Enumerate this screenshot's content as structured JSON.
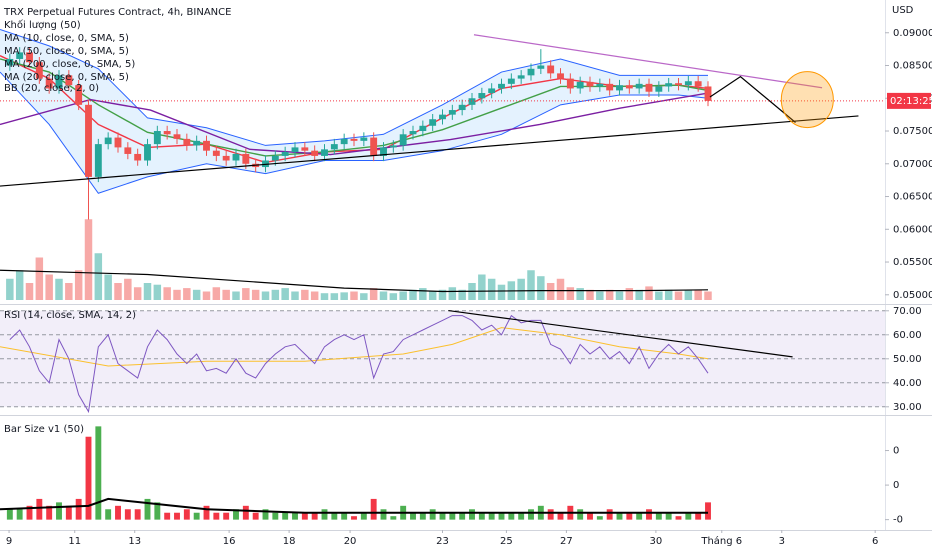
{
  "chart_data": [
    {
      "type": "candlestick",
      "title": "TRX Perpetual Futures Contract, 4h, BINANCE",
      "legend": [
        "Khối lượng (50)",
        "MA (10, close, 0, SMA, 5)",
        "MA (50, close, 0, SMA, 5)",
        "MA (200, close, 0, SMA, 5)",
        "MA (20, close, 0, SMA, 5)",
        "BB (20, close, 2, 0)"
      ],
      "y_label": "USD",
      "countdown": "02:13:25",
      "last_price": 0.0796,
      "up_color": "#26a69a",
      "down_color": "#ef5350",
      "xlim": [
        -1,
        89
      ],
      "xticks": [
        {
          "value": -0.08,
          "label": "9"
        },
        {
          "value": 6.6,
          "label": "11"
        },
        {
          "value": 12.7,
          "label": "13"
        },
        {
          "value": 22.3,
          "label": "16"
        },
        {
          "value": 28.4,
          "label": "18"
        },
        {
          "value": 34.6,
          "label": "20"
        },
        {
          "value": 44,
          "label": "23"
        },
        {
          "value": 50.5,
          "label": "25"
        },
        {
          "value": 56.6,
          "label": "27"
        },
        {
          "value": 65.7,
          "label": "30"
        },
        {
          "value": 72.4,
          "label": "Tháng 6"
        },
        {
          "value": 78.5,
          "label": "3"
        },
        {
          "value": 88,
          "label": "6"
        }
      ],
      "ylim": [
        0.0489,
        0.095
      ],
      "yticks": [
        {
          "value": 0.05,
          "label": "0.05000"
        },
        {
          "value": 0.055,
          "label": "0.05500"
        },
        {
          "value": 0.06,
          "label": "0.06000"
        },
        {
          "value": 0.065,
          "label": "0.06500"
        },
        {
          "value": 0.07,
          "label": "0.07000"
        },
        {
          "value": 0.075,
          "label": "0.07500"
        },
        {
          "value": 0.08,
          "label": "0.08000"
        },
        {
          "value": 0.085,
          "label": "0.08500"
        },
        {
          "value": 0.09,
          "label": "0.09000"
        }
      ],
      "open": [
        0.085,
        0.086,
        0.087,
        0.0855,
        0.083,
        0.0815,
        0.0835,
        0.082,
        0.079,
        0.068,
        0.073,
        0.074,
        0.0725,
        0.0715,
        0.0705,
        0.073,
        0.075,
        0.0745,
        0.0738,
        0.0728,
        0.0735,
        0.072,
        0.0712,
        0.0705,
        0.0715,
        0.07,
        0.0695,
        0.0705,
        0.0712,
        0.0718,
        0.0725,
        0.072,
        0.0712,
        0.0722,
        0.073,
        0.0738,
        0.0735,
        0.074,
        0.0712,
        0.0725,
        0.0728,
        0.0745,
        0.075,
        0.0758,
        0.0768,
        0.0775,
        0.0782,
        0.079,
        0.08,
        0.0808,
        0.0815,
        0.0822,
        0.083,
        0.0835,
        0.0845,
        0.085,
        0.0838,
        0.083,
        0.0815,
        0.0825,
        0.0818,
        0.0822,
        0.0812,
        0.082,
        0.0815,
        0.0822,
        0.081,
        0.0818,
        0.0823,
        0.082,
        0.0826,
        0.0818
      ],
      "high": [
        0.0868,
        0.0878,
        0.0878,
        0.0863,
        0.0838,
        0.0843,
        0.0843,
        0.0828,
        0.0798,
        0.0738,
        0.0748,
        0.0748,
        0.0733,
        0.0723,
        0.0738,
        0.0758,
        0.0758,
        0.0753,
        0.0746,
        0.0743,
        0.0743,
        0.0728,
        0.072,
        0.0723,
        0.0723,
        0.0708,
        0.0713,
        0.072,
        0.0726,
        0.0733,
        0.0733,
        0.0728,
        0.073,
        0.0738,
        0.0746,
        0.0746,
        0.0748,
        0.0748,
        0.0733,
        0.0736,
        0.0753,
        0.0758,
        0.0766,
        0.0776,
        0.0783,
        0.079,
        0.0798,
        0.0808,
        0.0816,
        0.0823,
        0.083,
        0.0838,
        0.0843,
        0.0853,
        0.0875,
        0.0858,
        0.0846,
        0.0838,
        0.0833,
        0.0833,
        0.083,
        0.083,
        0.0828,
        0.0828,
        0.083,
        0.083,
        0.0826,
        0.0831,
        0.0831,
        0.0834,
        0.0834,
        0.0826
      ],
      "low": [
        0.0842,
        0.0852,
        0.0847,
        0.0822,
        0.0807,
        0.0807,
        0.0812,
        0.0782,
        0.0615,
        0.0672,
        0.0722,
        0.0717,
        0.0707,
        0.0697,
        0.0697,
        0.0722,
        0.0737,
        0.073,
        0.072,
        0.072,
        0.0712,
        0.0704,
        0.0697,
        0.0697,
        0.0692,
        0.0687,
        0.0687,
        0.0697,
        0.0704,
        0.071,
        0.0712,
        0.0704,
        0.0704,
        0.0714,
        0.0722,
        0.0727,
        0.0727,
        0.0704,
        0.0704,
        0.0717,
        0.072,
        0.0737,
        0.0742,
        0.075,
        0.076,
        0.0767,
        0.0774,
        0.0782,
        0.0792,
        0.08,
        0.0807,
        0.0814,
        0.0822,
        0.0827,
        0.0837,
        0.083,
        0.0822,
        0.0807,
        0.0807,
        0.081,
        0.081,
        0.0804,
        0.0804,
        0.0807,
        0.0807,
        0.0802,
        0.0802,
        0.081,
        0.0812,
        0.0812,
        0.081,
        0.0788
      ],
      "close": [
        0.086,
        0.087,
        0.0855,
        0.083,
        0.0815,
        0.0835,
        0.082,
        0.079,
        0.068,
        0.073,
        0.074,
        0.0725,
        0.0715,
        0.0705,
        0.073,
        0.075,
        0.0745,
        0.0738,
        0.0728,
        0.0735,
        0.072,
        0.0712,
        0.0705,
        0.0715,
        0.07,
        0.0695,
        0.0705,
        0.0712,
        0.0718,
        0.0725,
        0.072,
        0.0712,
        0.0722,
        0.073,
        0.0738,
        0.0735,
        0.074,
        0.0712,
        0.0725,
        0.0728,
        0.0745,
        0.075,
        0.0758,
        0.0768,
        0.0775,
        0.0782,
        0.079,
        0.08,
        0.0808,
        0.0815,
        0.0822,
        0.083,
        0.0835,
        0.0845,
        0.085,
        0.0838,
        0.083,
        0.0815,
        0.0825,
        0.0818,
        0.0822,
        0.0812,
        0.082,
        0.0815,
        0.0822,
        0.081,
        0.0818,
        0.0823,
        0.082,
        0.0826,
        0.0818,
        0.0796
      ],
      "overlays": [
        {
          "color": "#2962ff",
          "x": [
            -1,
            4,
            9,
            14,
            20,
            26,
            32,
            38,
            44,
            50,
            56,
            62,
            68,
            71
          ],
          "values": [
            0.0905,
            0.088,
            0.0845,
            0.077,
            0.0755,
            0.0728,
            0.0735,
            0.0745,
            0.079,
            0.084,
            0.086,
            0.0835,
            0.0835,
            0.0835
          ]
        },
        {
          "color": "#2962ff",
          "x": [
            -1,
            4,
            9,
            14,
            20,
            26,
            32,
            38,
            44,
            50,
            56,
            62,
            68,
            71
          ],
          "values": [
            0.084,
            0.076,
            0.0655,
            0.068,
            0.07,
            0.0685,
            0.0705,
            0.0705,
            0.072,
            0.0745,
            0.079,
            0.0805,
            0.0805,
            0.08
          ]
        },
        {
          "color": "#f23645",
          "x": [
            -1,
            4,
            9,
            14,
            20,
            26,
            32,
            38,
            44,
            50,
            56,
            62,
            68,
            71
          ],
          "values": [
            0.0865,
            0.083,
            0.076,
            0.0725,
            0.073,
            0.0702,
            0.0718,
            0.0722,
            0.077,
            0.0815,
            0.083,
            0.0818,
            0.082,
            0.0815
          ]
        },
        {
          "color": "#43a047",
          "x": [
            -1,
            4,
            9,
            14,
            20,
            26,
            32,
            38,
            44,
            50,
            56,
            62,
            68,
            71
          ],
          "values": [
            0.086,
            0.084,
            0.079,
            0.0748,
            0.073,
            0.0712,
            0.0718,
            0.0728,
            0.0752,
            0.0785,
            0.0818,
            0.0818,
            0.082,
            0.0812
          ]
        },
        {
          "color": "#7b1fa2",
          "x": [
            -1,
            8.2,
            14.3,
            24.4,
            32.6,
            44.8,
            53.9,
            62.1,
            71
          ],
          "values": [
            0.076,
            0.0798,
            0.0782,
            0.0722,
            0.0714,
            0.0737,
            0.076,
            0.0785,
            0.0808
          ]
        }
      ],
      "drawings": [
        {
          "type": "line",
          "color": "#000000",
          "x": [
            -1,
            86.3
          ],
          "values": [
            0.0666,
            0.0773
          ]
        },
        {
          "type": "line",
          "color": "#ba68c8",
          "x": [
            47.2,
            82.6
          ],
          "values": [
            0.0897,
            0.0816
          ]
        },
        {
          "type": "line",
          "color": "#000000",
          "x": [
            71.2,
            74.3,
            79.9
          ],
          "values": [
            0.0802,
            0.0833,
            0.0763
          ]
        },
        {
          "type": "circle",
          "color": "#ff9800",
          "x": [
            81.1
          ],
          "values": [
            0.0798
          ]
        }
      ],
      "volume": {
        "ylim": [
          0,
          100
        ],
        "values": [
          25,
          35,
          20,
          50,
          30,
          25,
          20,
          35,
          95,
          55,
          30,
          20,
          25,
          15,
          20,
          18,
          15,
          12,
          14,
          12,
          10,
          15,
          12,
          10,
          14,
          12,
          10,
          12,
          14,
          10,
          12,
          10,
          8,
          8,
          9,
          10,
          8,
          14,
          10,
          8,
          10,
          12,
          14,
          10,
          12,
          15,
          12,
          20,
          30,
          25,
          18,
          22,
          25,
          35,
          28,
          20,
          25,
          15,
          14,
          12,
          10,
          12,
          10,
          14,
          12,
          16,
          10,
          12,
          10,
          12,
          12,
          10
        ],
        "ma": {
          "color": "#000000",
          "x": [
            -1,
            8,
            14,
            24,
            34,
            44,
            54,
            64,
            71
          ],
          "values": [
            35,
            32,
            30,
            22,
            14,
            10,
            11,
            11,
            12
          ]
        }
      }
    },
    {
      "type": "line",
      "title": "RSI (14, close, SMA, 14, 2)",
      "color": "#7e57c2",
      "ylim": [
        27,
        72
      ],
      "yticks": [
        {
          "value": 70,
          "label": "70.00"
        },
        {
          "value": 60,
          "label": "60.00"
        },
        {
          "value": 50,
          "label": "50.00"
        },
        {
          "value": 40,
          "label": "40.00"
        },
        {
          "value": 30,
          "label": "30.00"
        }
      ],
      "band": [
        30,
        70
      ],
      "values": [
        58,
        62,
        55,
        45,
        40,
        58,
        50,
        35,
        28,
        55,
        60,
        48,
        45,
        42,
        55,
        62,
        58,
        52,
        48,
        52,
        45,
        46,
        44,
        50,
        44,
        42,
        48,
        52,
        55,
        56,
        52,
        48,
        55,
        58,
        60,
        58,
        60,
        42,
        52,
        53,
        58,
        60,
        62,
        64,
        66,
        68,
        68,
        66,
        62,
        64,
        60,
        68,
        65,
        66,
        66,
        56,
        54,
        48,
        56,
        52,
        55,
        50,
        53,
        48,
        55,
        46,
        52,
        56,
        52,
        55,
        50,
        44
      ],
      "ma": {
        "color": "#fbc02d",
        "x": [
          -1,
          10,
          20,
          30,
          40,
          45,
          50,
          56,
          62,
          68,
          71
        ],
        "values": [
          55,
          47,
          49,
          49,
          52,
          56,
          63,
          60,
          55,
          52,
          50
        ]
      },
      "drawings": [
        {
          "type": "line",
          "color": "#000000",
          "x": [
            44.6,
            79.6
          ],
          "values": [
            70.1,
            50.8
          ]
        }
      ]
    },
    {
      "type": "bar",
      "title": "Bar Size v1 (50)",
      "up_color": "#4caf50",
      "down_color": "#f23645",
      "ylim": [
        -0.0003,
        0.003
      ],
      "yticks": [
        {
          "value": 0.002,
          "label": "0"
        },
        {
          "value": 0.001,
          "label": "0"
        },
        {
          "value": 0,
          "label": "-0"
        }
      ],
      "values": [
        0.0003,
        0.0003,
        0.0004,
        0.0006,
        0.0004,
        0.0005,
        0.0004,
        0.0006,
        0.0024,
        0.0027,
        0.0003,
        0.0004,
        0.0003,
        0.0003,
        0.0006,
        0.0005,
        0.0002,
        0.0002,
        0.0003,
        0.0002,
        0.0004,
        0.0002,
        0.0002,
        0.0003,
        0.0004,
        0.0002,
        0.0003,
        0.0002,
        0.0002,
        0.0002,
        0.0002,
        0.0002,
        0.0003,
        0.0002,
        0.0002,
        0.0001,
        0.0002,
        0.0006,
        0.0003,
        0.0001,
        0.0004,
        0.0002,
        0.0002,
        0.0003,
        0.0002,
        0.0002,
        0.0002,
        0.0003,
        0.0002,
        0.0002,
        0.0002,
        0.0002,
        0.0002,
        0.0003,
        0.0004,
        0.0003,
        0.0002,
        0.0004,
        0.0003,
        0.0002,
        0.0001,
        0.0003,
        0.0002,
        0.0002,
        0.0002,
        0.0003,
        0.0002,
        0.0002,
        0.0001,
        0.0002,
        0.0002,
        0.0005
      ],
      "ma": {
        "color": "#000000",
        "x": [
          -1,
          8,
          10,
          20,
          30,
          40,
          50,
          60,
          71
        ],
        "values": [
          0.0003,
          0.0004,
          0.0006,
          0.0003,
          0.0002,
          0.0002,
          0.0002,
          0.0002,
          0.0002
        ]
      }
    }
  ]
}
